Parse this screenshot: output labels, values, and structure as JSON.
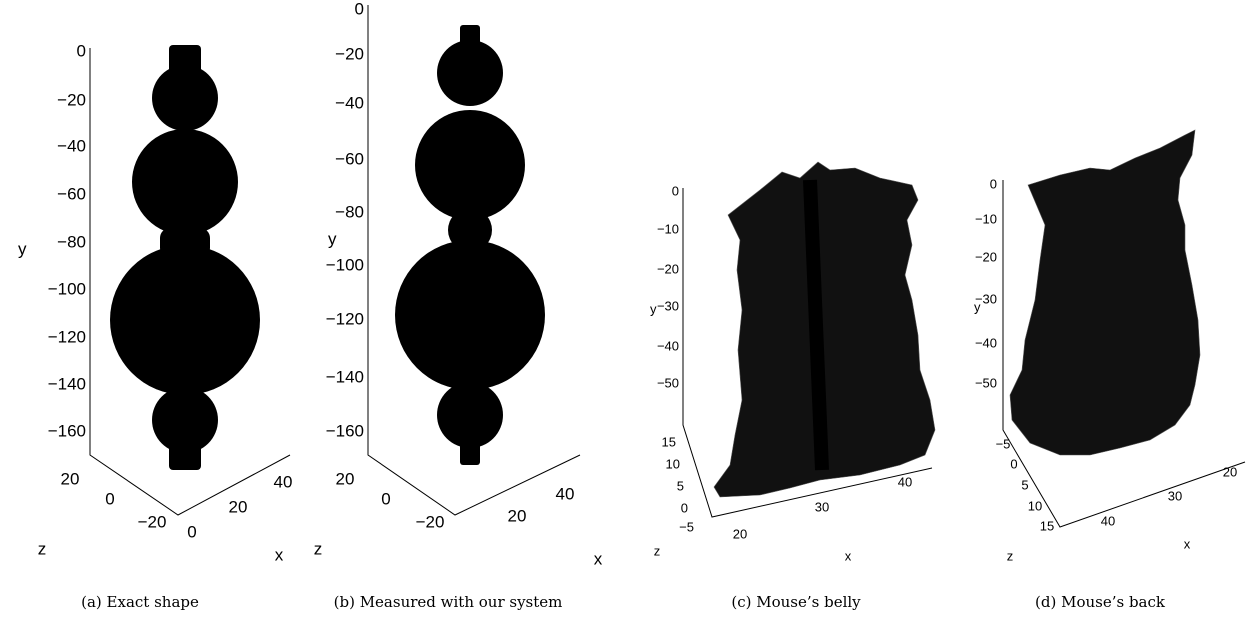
{
  "panels": [
    {
      "caption": "(a) Exact shape",
      "y_label": "y",
      "z_label": "z",
      "x_label": "x",
      "y_ticks": [
        "0",
        "−20",
        "−40",
        "−60",
        "−80",
        "−100",
        "−120",
        "−140",
        "−160"
      ],
      "z_ticks": [
        "20",
        "0",
        "−20"
      ],
      "x_ticks": [
        "0",
        "20",
        "40"
      ]
    },
    {
      "caption": "(b) Measured with our system",
      "y_label": "y",
      "z_label": "z",
      "x_label": "x",
      "y_ticks": [
        "0",
        "−20",
        "−40",
        "−60",
        "−80",
        "−100",
        "−120",
        "−140",
        "−160"
      ],
      "z_ticks": [
        "20",
        "0",
        "−20"
      ],
      "x_ticks": [
        "20",
        "40"
      ]
    },
    {
      "caption": "(c) Mouse’s belly",
      "y_label": "y",
      "z_label": "z",
      "x_label": "x",
      "y_ticks": [
        "0",
        "−10",
        "−20",
        "−30",
        "−40",
        "−50"
      ],
      "z_ticks": [
        "15",
        "10",
        "5",
        "0",
        "−5"
      ],
      "x_ticks": [
        "20",
        "30",
        "40"
      ]
    },
    {
      "caption": "(d) Mouse’s back",
      "y_label": "y",
      "z_label": "z",
      "x_label": "x",
      "y_ticks": [
        "0",
        "−10",
        "−20",
        "−30",
        "−40",
        "−50"
      ],
      "z_ticks": [
        "−5",
        "0",
        "5",
        "10",
        "15"
      ],
      "x_ticks": [
        "40",
        "30",
        "20"
      ]
    }
  ]
}
